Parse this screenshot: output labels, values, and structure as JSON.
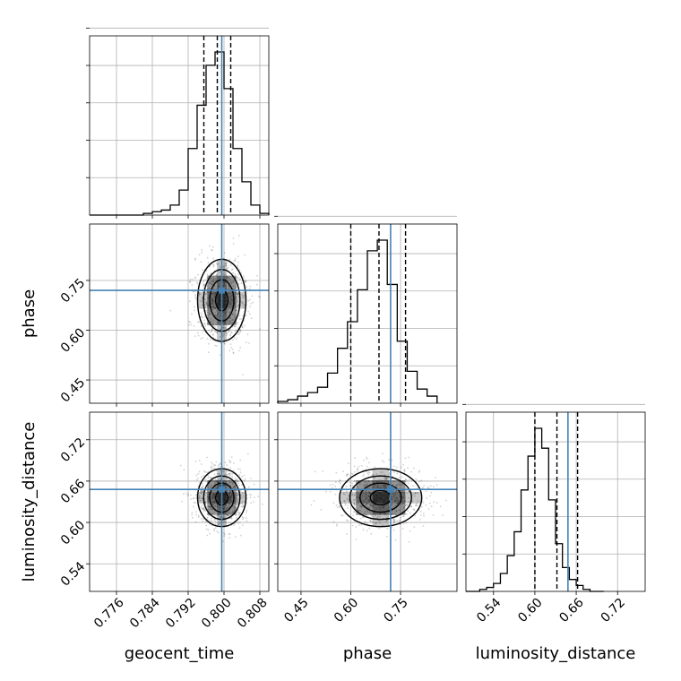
{
  "chart_data": {
    "type": "corner",
    "parameters": [
      {
        "name": "geocent_time",
        "label": "geocent_time",
        "range": [
          0.77,
          0.81
        ],
        "ticks": [
          "0.776",
          "0.784",
          "0.792",
          "0.800",
          "0.808"
        ],
        "tick_values": [
          0.776,
          0.784,
          0.792,
          0.8,
          0.808
        ],
        "true_value": 0.7995,
        "quantiles": [
          0.7955,
          0.7985,
          0.8015
        ],
        "histogram": {
          "edges_start": 0.77,
          "bin_width": 0.002,
          "counts": [
            0,
            0,
            0,
            0,
            0,
            0,
            1,
            2,
            3,
            6,
            15,
            40,
            66,
            90,
            98,
            76,
            40,
            20,
            6,
            1
          ]
        }
      },
      {
        "name": "phase",
        "label": "phase",
        "range": [
          0.38,
          0.92
        ],
        "ticks": [
          "0.45",
          "0.60",
          "0.75"
        ],
        "tick_values": [
          0.45,
          0.6,
          0.75
        ],
        "true_value": 0.72,
        "quantiles": [
          0.6,
          0.685,
          0.765
        ],
        "histogram": {
          "edges_start": 0.38,
          "bin_width": 0.03,
          "counts": [
            1,
            2,
            4,
            6,
            9,
            17,
            31,
            46,
            64,
            86,
            92,
            67,
            35,
            18,
            8,
            4
          ]
        }
      },
      {
        "name": "luminosity_distance",
        "label": "luminosity_distance",
        "range": [
          0.5,
          0.76
        ],
        "ticks": [
          "0.54",
          "0.60",
          "0.66",
          "0.72"
        ],
        "tick_values": [
          0.54,
          0.6,
          0.66,
          0.72
        ],
        "true_value": 0.648,
        "quantiles": [
          0.6,
          0.632,
          0.662
        ],
        "histogram": {
          "edges_start": 0.5,
          "bin_width": 0.01,
          "counts": [
            0,
            0,
            1,
            2,
            4,
            9,
            18,
            30,
            51,
            68,
            82,
            72,
            46,
            24,
            12,
            6,
            3,
            1,
            0,
            0
          ]
        }
      }
    ],
    "pairs": [
      {
        "x": "geocent_time",
        "y": "phase",
        "center": [
          0.7995,
          0.69
        ],
        "sigma": [
          0.0027,
          0.062
        ]
      },
      {
        "x": "geocent_time",
        "y": "luminosity_distance",
        "center": [
          0.7995,
          0.636
        ],
        "sigma": [
          0.0027,
          0.021
        ]
      },
      {
        "x": "phase",
        "y": "luminosity_distance",
        "center": [
          0.69,
          0.636
        ],
        "sigma": [
          0.062,
          0.021
        ]
      }
    ],
    "truth_color": "#4682b4",
    "quantile_style": "dashed",
    "grid": true
  }
}
